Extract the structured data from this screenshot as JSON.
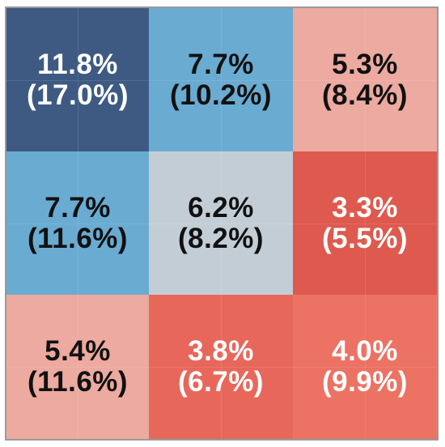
{
  "chart_data": {
    "type": "heatmap",
    "rows": 3,
    "cols": 3,
    "cells": [
      {
        "row": 0,
        "col": 0,
        "primary": "11.8%",
        "secondary": "(17.0%)",
        "value": 11.8,
        "secondary_value": 17.0,
        "fill": "#3e5a82",
        "text_color": "#ffffff"
      },
      {
        "row": 0,
        "col": 1,
        "primary": "7.7%",
        "secondary": "(10.2%)",
        "value": 7.7,
        "secondary_value": 10.2,
        "fill": "#6aabd2",
        "text_color": "#111111"
      },
      {
        "row": 0,
        "col": 2,
        "primary": "5.3%",
        "secondary": "(8.4%)",
        "value": 5.3,
        "secondary_value": 8.4,
        "fill": "#ecaaa0",
        "text_color": "#111111"
      },
      {
        "row": 1,
        "col": 0,
        "primary": "7.7%",
        "secondary": "(11.6%)",
        "value": 7.7,
        "secondary_value": 11.6,
        "fill": "#6aabd2",
        "text_color": "#111111"
      },
      {
        "row": 1,
        "col": 1,
        "primary": "6.2%",
        "secondary": "(8.2%)",
        "value": 6.2,
        "secondary_value": 8.2,
        "fill": "#c3cdd5",
        "text_color": "#111111"
      },
      {
        "row": 1,
        "col": 2,
        "primary": "3.3%",
        "secondary": "(5.5%)",
        "value": 3.3,
        "secondary_value": 5.5,
        "fill": "#de5a4e",
        "text_color": "#ffffff"
      },
      {
        "row": 2,
        "col": 0,
        "primary": "5.4%",
        "secondary": "(11.6%)",
        "value": 5.4,
        "secondary_value": 11.6,
        "fill": "#ecaaa0",
        "text_color": "#111111"
      },
      {
        "row": 2,
        "col": 1,
        "primary": "3.8%",
        "secondary": "(6.7%)",
        "value": 3.8,
        "secondary_value": 6.7,
        "fill": "#e8675b",
        "text_color": "#ffffff"
      },
      {
        "row": 2,
        "col": 2,
        "primary": "4.0%",
        "secondary": "(9.9%)",
        "value": 4.0,
        "secondary_value": 9.9,
        "fill": "#ec7264",
        "text_color": "#ffffff"
      }
    ],
    "title": "",
    "xlabel": "",
    "ylabel": "",
    "legend": "none",
    "grid": false
  }
}
